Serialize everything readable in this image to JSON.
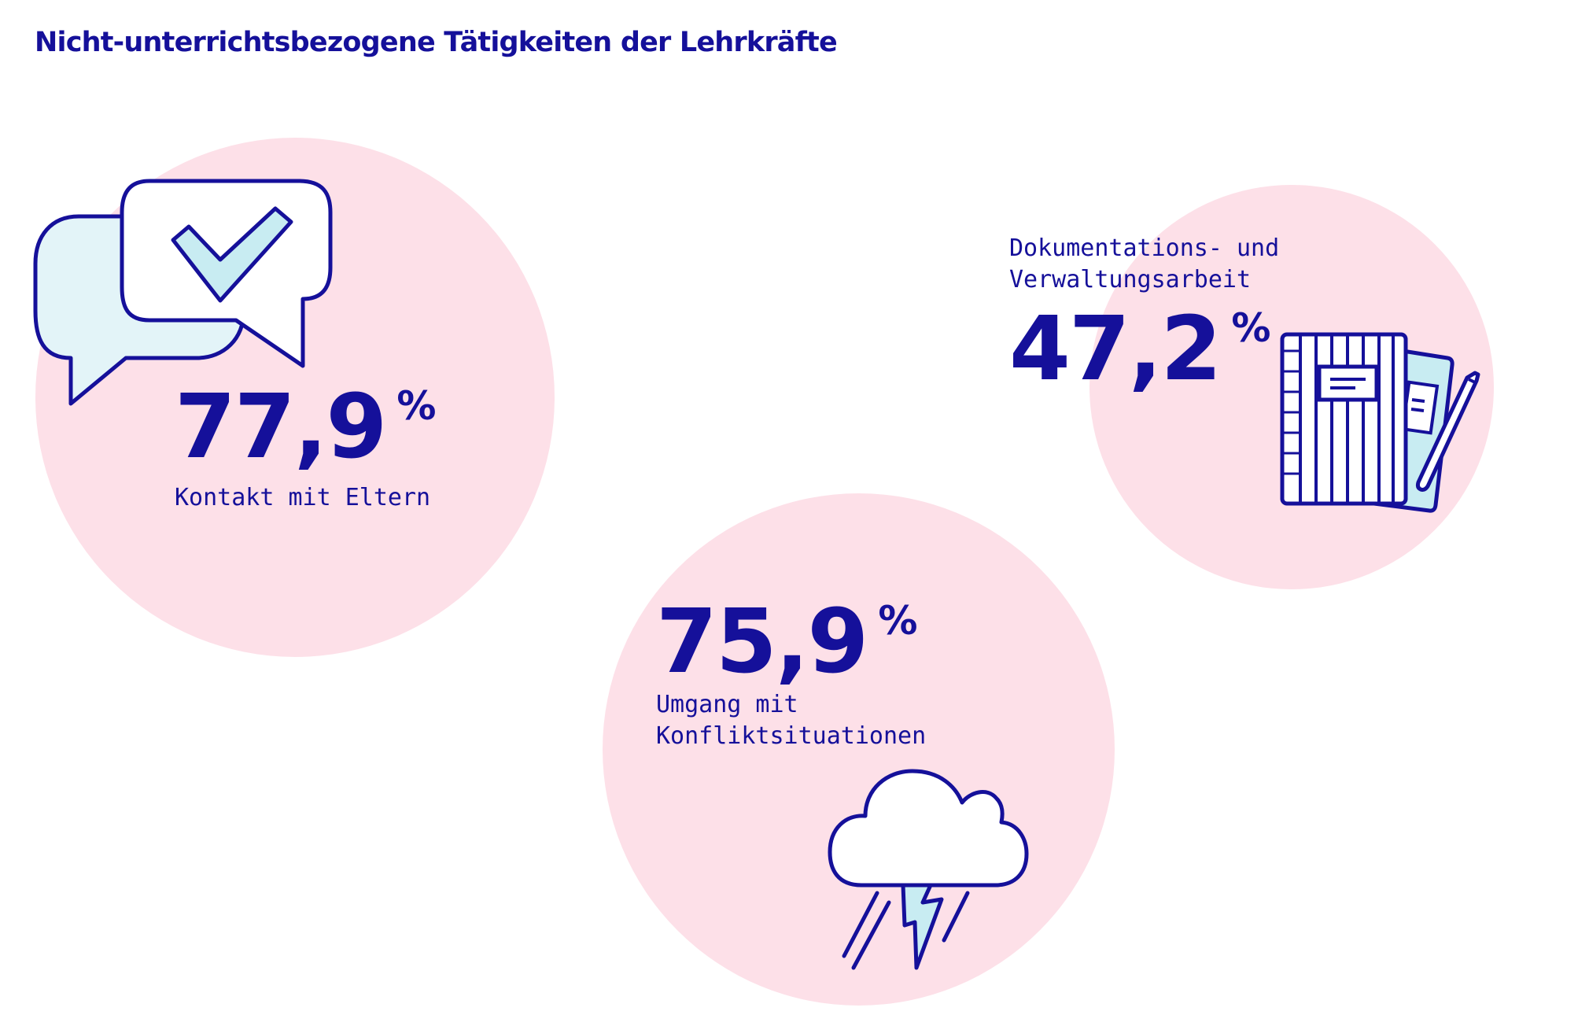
{
  "title": "Nicht-unterrichtsbezogene Tätigkeiten der Lehrkräfte",
  "colors": {
    "accent": "#15109a",
    "circle_fill": "#fde0e8",
    "icon_fill": "#e3f4f8",
    "icon_fill_strong": "#c8ecf2"
  },
  "chart_data": {
    "type": "bubble",
    "title": "Nicht-unterrichtsbezogene Tätigkeiten der Lehrkräfte",
    "unit": "%",
    "items": [
      {
        "key": "eltern",
        "value": 77.9,
        "value_label": "77,9",
        "unit_label": "%",
        "label_lines": [
          "Kontakt mit Eltern"
        ],
        "icon": "speech-bubbles-check-icon"
      },
      {
        "key": "konflikt",
        "value": 75.9,
        "value_label": "75,9",
        "unit_label": "%",
        "label_lines": [
          "Umgang mit",
          "Konfliktsituationen"
        ],
        "icon": "storm-cloud-lightning-icon"
      },
      {
        "key": "doku",
        "value": 47.2,
        "value_label": "47,2",
        "unit_label": "%",
        "label_lines": [
          "Dokumentations- und",
          "Verwaltungsarbeit"
        ],
        "icon": "notebook-pen-icon"
      }
    ]
  }
}
